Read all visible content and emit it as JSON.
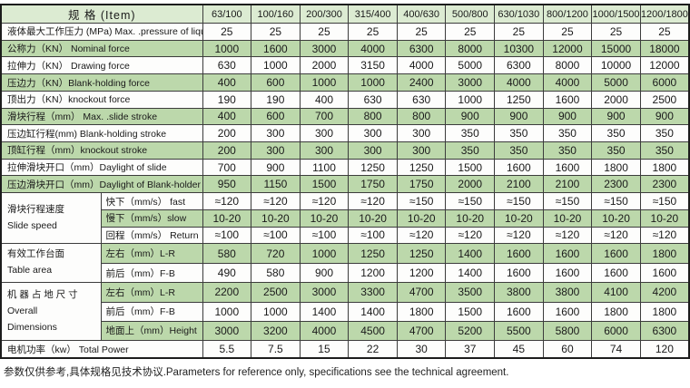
{
  "colors": {
    "row_shade": "#bcd8ab",
    "header_shade": "#dcebd2",
    "grid_line": "#3c3c3c",
    "outer_border": "#1c1c1c",
    "text": "#1a1a1a"
  },
  "table": {
    "item_header": "规  格 (Item)",
    "model_columns": [
      "63/100",
      "100/160",
      "200/300",
      "315/400",
      "400/630",
      "500/800",
      "630/1030",
      "800/1200",
      "1000/1500",
      "1200/1800"
    ],
    "rows": [
      {
        "label": "液体最大工作压力 (MPa)  Max. .pressure of liquid",
        "shade": false,
        "values": [
          "25",
          "25",
          "25",
          "25",
          "25",
          "25",
          "25",
          "25",
          "25",
          "25"
        ]
      },
      {
        "label": "公称力（KN） Nominal force",
        "shade": true,
        "values": [
          "1000",
          "1600",
          "3000",
          "4000",
          "6300",
          "8000",
          "10300",
          "12000",
          "15000",
          "18000"
        ]
      },
      {
        "label": "拉伸力（KN） Drawing force",
        "shade": false,
        "values": [
          "630",
          "1000",
          "2000",
          "3150",
          "4000",
          "5000",
          "6300",
          "8000",
          "10000",
          "12000"
        ]
      },
      {
        "label": "压边力（KN）Blank-holding force",
        "shade": true,
        "values": [
          "400",
          "600",
          "1000",
          "1000",
          "2400",
          "3000",
          "4000",
          "4000",
          "5000",
          "6000"
        ]
      },
      {
        "label": "顶出力（KN）knockout force",
        "shade": false,
        "values": [
          "190",
          "190",
          "400",
          "630",
          "630",
          "1000",
          "1250",
          "1600",
          "2000",
          "2500"
        ]
      },
      {
        "label": "滑块行程（mm） Max. .slide stroke",
        "shade": true,
        "values": [
          "400",
          "600",
          "700",
          "800",
          "800",
          "900",
          "900",
          "900",
          "900",
          "900"
        ]
      },
      {
        "label": "压边缸行程(mm) Blank-holding stroke",
        "shade": false,
        "values": [
          "200",
          "300",
          "300",
          "300",
          "300",
          "350",
          "350",
          "350",
          "350",
          "350"
        ]
      },
      {
        "label": "顶缸行程（mm）knockout stroke",
        "shade": true,
        "values": [
          "200",
          "300",
          "300",
          "300",
          "300",
          "350",
          "350",
          "350",
          "350",
          "350"
        ]
      },
      {
        "label": "拉伸滑块开口（mm）Daylight of slide",
        "shade": false,
        "values": [
          "700",
          "900",
          "1100",
          "1250",
          "1250",
          "1500",
          "1600",
          "1600",
          "1800",
          "1800"
        ]
      },
      {
        "label": "压边滑块开口（mm）Daylight of Blank-holder",
        "shade": true,
        "values": [
          "950",
          "1150",
          "1500",
          "1750",
          "1750",
          "2000",
          "2100",
          "2100",
          "2300",
          "2300"
        ]
      },
      {
        "group": {
          "lines": [
            "滑块行程速度",
            "Slide speed"
          ],
          "span": 3
        },
        "sublabel": "快下（mm/s） fast",
        "shade": false,
        "values": [
          "≈120",
          "≈120",
          "≈120",
          "≈120",
          "≈150",
          "≈150",
          "≈150",
          "≈150",
          "≈150",
          "≈150"
        ]
      },
      {
        "sublabel": "慢下（mm/s）slow",
        "shade": true,
        "values": [
          "10-20",
          "10-20",
          "10-20",
          "10-20",
          "10-20",
          "10-20",
          "10-20",
          "10-20",
          "10-20",
          "10-20"
        ]
      },
      {
        "sublabel": "回程（mm/s） Return",
        "shade": false,
        "values": [
          "≈100",
          "≈100",
          "≈100",
          "≈100",
          "≈120",
          "≈120",
          "≈120",
          "≈120",
          "≈120",
          "≈120"
        ]
      },
      {
        "group": {
          "lines": [
            "有效工作台面",
            "Table area"
          ],
          "span": 2
        },
        "sublabel": "左右（mm）L-R",
        "shade": true,
        "values": [
          "580",
          "720",
          "1000",
          "1250",
          "1250",
          "1400",
          "1600",
          "1600",
          "1600",
          "1800"
        ]
      },
      {
        "sublabel": "前后（mm）F-B",
        "shade": false,
        "values": [
          "490",
          "580",
          "900",
          "1200",
          "1200",
          "1400",
          "1600",
          "1600",
          "1600",
          "1600"
        ]
      },
      {
        "group": {
          "lines": [
            "机 器 占 地 尺 寸",
            "Overall",
            "Dimensions"
          ],
          "span": 3
        },
        "sublabel": "左右（mm）L-R",
        "shade": true,
        "values": [
          "2200",
          "2500",
          "3000",
          "3300",
          "4700",
          "3500",
          "3800",
          "3800",
          "4100",
          "4200"
        ]
      },
      {
        "sublabel": "前后（mm）F-B",
        "shade": false,
        "values": [
          "1000",
          "1000",
          "1400",
          "1400",
          "1800",
          "1500",
          "1600",
          "1600",
          "1800",
          "1800"
        ]
      },
      {
        "sublabel": "地面上（mm）Height",
        "shade": true,
        "values": [
          "3000",
          "3200",
          "4000",
          "4500",
          "4700",
          "5200",
          "5500",
          "5800",
          "6000",
          "6300"
        ]
      },
      {
        "label": "电机功率（kw） Total Power",
        "shade": false,
        "values": [
          "5.5",
          "7.5",
          "15",
          "22",
          "30",
          "37",
          "45",
          "60",
          "74",
          "120"
        ]
      }
    ]
  },
  "footer": {
    "note": "参数仅供参考,具体规格见技术协议.Parameters for reference only, specifications see the technical agreement."
  }
}
